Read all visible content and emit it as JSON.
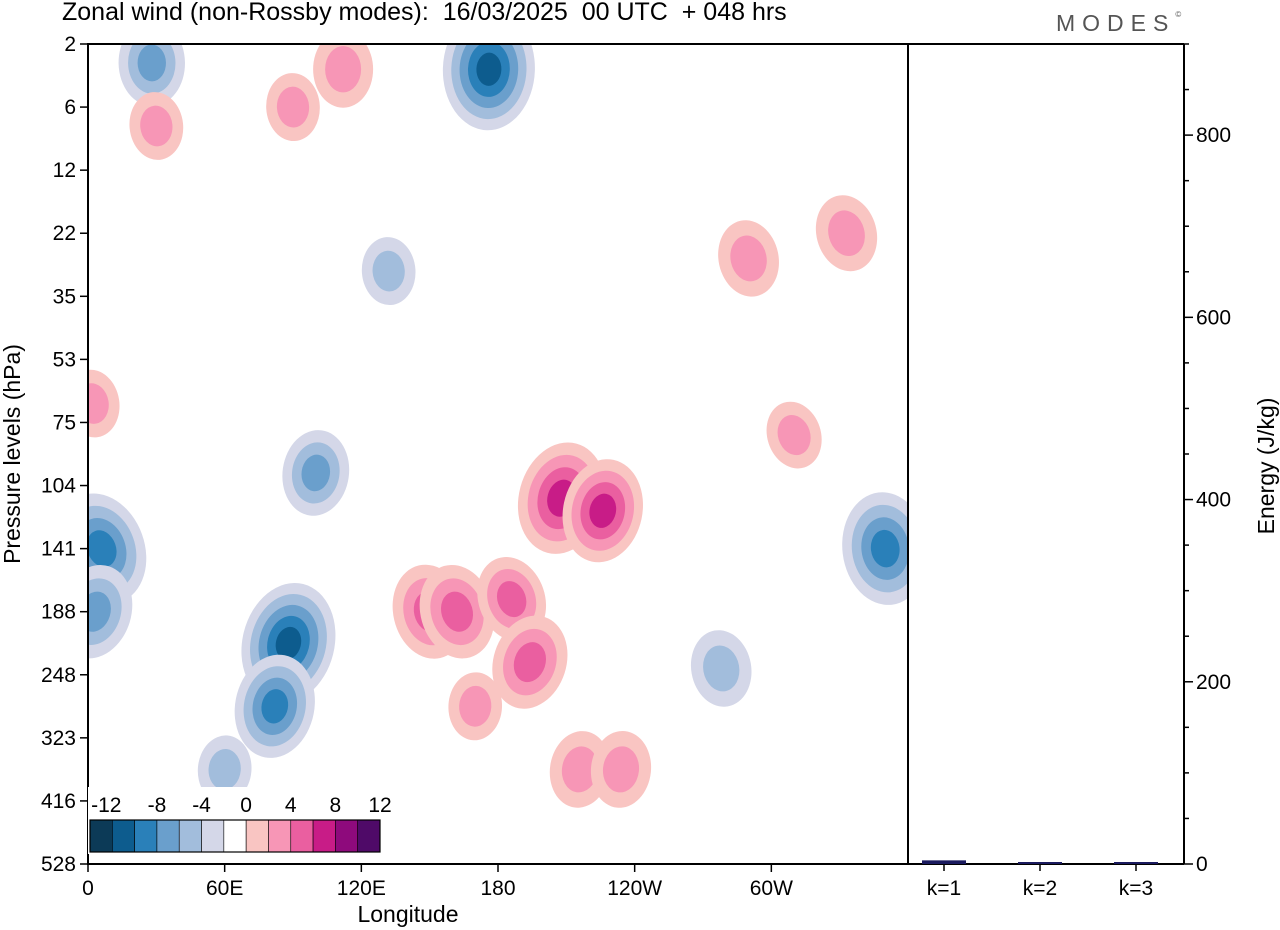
{
  "header": {
    "title": "Zonal wind (non-Rossby modes):  16/03/2025  00 UTC  + 048 hrs",
    "logo_text": "MODES",
    "logo_mark": "©"
  },
  "chart_data": [
    {
      "type": "heatmap",
      "title": "Zonal wind (non-Rossby modes):  16/03/2025  00 UTC  + 048 hrs",
      "xlabel": "Longitude",
      "ylabel": "Pressure levels (hPa)",
      "x_ticks": [
        "0",
        "60E",
        "120E",
        "180",
        "120W",
        "60W"
      ],
      "x_tick_values": [
        0,
        60,
        120,
        180,
        240,
        300
      ],
      "xlim": [
        0,
        360
      ],
      "y_levels": [
        "2",
        "6",
        "12",
        "22",
        "35",
        "53",
        "75",
        "104",
        "141",
        "188",
        "248",
        "323",
        "416",
        "528"
      ],
      "y_scale": "level index (top = 2 hPa, bottom = 528 hPa)",
      "colorbar": {
        "labels": [
          "-12",
          "-8",
          "-4",
          "0",
          "4",
          "8",
          "12"
        ],
        "bounds": [
          -14,
          -12,
          -10,
          -8,
          -6,
          -4,
          -2,
          2,
          4,
          6,
          8,
          10,
          12,
          14
        ],
        "colors": [
          "#0c3a57",
          "#0d5c8e",
          "#2a80b9",
          "#6a9fcc",
          "#a2bddc",
          "#d4d7e8",
          "#ffffff",
          "#f9c5c2",
          "#f796b6",
          "#ea5fa0",
          "#c81c87",
          "#8e0a7c",
          "#4f0a68"
        ]
      },
      "features": [
        {
          "lon": 6,
          "level": 8.0,
          "value": -9
        },
        {
          "lon": 3,
          "level": 9.0,
          "value": -7
        },
        {
          "lon": 88,
          "level": 9.5,
          "value": -10
        },
        {
          "lon": 82,
          "level": 10.5,
          "value": -8
        },
        {
          "lon": 100,
          "level": 6.8,
          "value": -6
        },
        {
          "lon": 60,
          "level": 11.5,
          "value": -4
        },
        {
          "lon": 176,
          "level": 0.4,
          "value": -10
        },
        {
          "lon": 28,
          "level": 0.3,
          "value": -6
        },
        {
          "lon": 132,
          "level": 3.6,
          "value": -4
        },
        {
          "lon": 350,
          "level": 8.0,
          "value": -9
        },
        {
          "lon": 278,
          "level": 9.9,
          "value": -5
        },
        {
          "lon": 150,
          "level": 9.0,
          "value": 7
        },
        {
          "lon": 162,
          "level": 9.0,
          "value": 7
        },
        {
          "lon": 186,
          "level": 8.8,
          "value": 6
        },
        {
          "lon": 194,
          "level": 9.8,
          "value": 7
        },
        {
          "lon": 208,
          "level": 7.2,
          "value": 9
        },
        {
          "lon": 226,
          "level": 7.4,
          "value": 8
        },
        {
          "lon": 216,
          "level": 11.5,
          "value": 5
        },
        {
          "lon": 234,
          "level": 11.5,
          "value": 5
        },
        {
          "lon": 170,
          "level": 10.5,
          "value": 4
        },
        {
          "lon": 112,
          "level": 0.4,
          "value": 5
        },
        {
          "lon": 90,
          "level": 1.0,
          "value": 4
        },
        {
          "lon": 30,
          "level": 1.3,
          "value": 4
        },
        {
          "lon": 2,
          "level": 5.7,
          "value": 4
        },
        {
          "lon": 290,
          "level": 3.4,
          "value": 5
        },
        {
          "lon": 333,
          "level": 3.0,
          "value": 5
        },
        {
          "lon": 310,
          "level": 6.2,
          "value": 4
        }
      ]
    },
    {
      "type": "bar",
      "categories": [
        "k=1",
        "k=2",
        "k=3"
      ],
      "values": [
        4,
        2,
        2
      ],
      "ylabel": "Energy (J/kg)",
      "ylim": [
        0,
        900
      ],
      "y_ticks": [
        "0",
        "200",
        "400",
        "600",
        "800"
      ],
      "bar_color": "#1a1a5e"
    }
  ]
}
